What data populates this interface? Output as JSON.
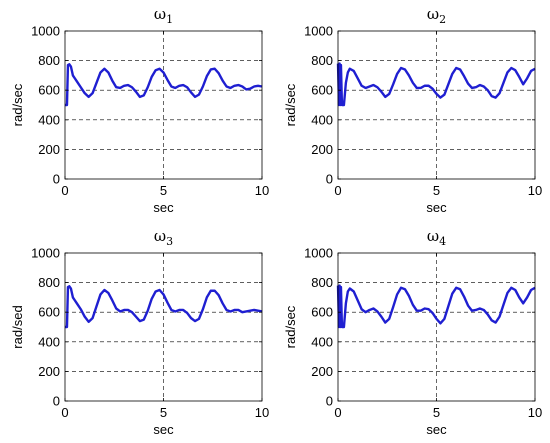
{
  "figure": {
    "background": "#ffffff",
    "line_color": "#1f1fd1",
    "grid_color": "#000000"
  },
  "chart_data": [
    {
      "type": "line",
      "title_symbol": "ω",
      "title_sub": "1",
      "xlabel": "sec",
      "ylabel": "rad/sec",
      "xlim": [
        0,
        10
      ],
      "ylim": [
        0,
        1000
      ],
      "xticks": [
        0,
        5,
        10
      ],
      "yticks": [
        0,
        200,
        400,
        600,
        800,
        1000
      ],
      "grid": true,
      "series": [
        {
          "x": [
            0,
            0.1,
            0.15,
            0.22,
            0.3,
            0.4,
            0.5,
            0.6,
            0.8,
            1.0,
            1.2,
            1.4,
            1.6,
            1.8,
            2.0,
            2.2,
            2.4,
            2.6,
            2.8,
            3.0,
            3.2,
            3.4,
            3.6,
            3.8,
            4.0,
            4.2,
            4.4,
            4.6,
            4.8,
            5.0,
            5.2,
            5.4,
            5.6,
            5.8,
            6.0,
            6.2,
            6.4,
            6.6,
            6.8,
            7.0,
            7.2,
            7.4,
            7.6,
            7.8,
            8.0,
            8.2,
            8.4,
            8.6,
            8.8,
            9.0,
            9.2,
            9.4,
            9.6,
            9.8,
            10.0
          ],
          "y": [
            500,
            500,
            770,
            775,
            760,
            700,
            680,
            660,
            620,
            580,
            555,
            580,
            650,
            720,
            745,
            720,
            665,
            620,
            615,
            630,
            635,
            620,
            590,
            555,
            565,
            620,
            690,
            735,
            745,
            720,
            670,
            625,
            615,
            630,
            635,
            620,
            585,
            555,
            570,
            625,
            695,
            740,
            745,
            715,
            665,
            625,
            615,
            630,
            635,
            625,
            605,
            610,
            625,
            630,
            625
          ]
        }
      ]
    },
    {
      "type": "line",
      "title_symbol": "ω",
      "title_sub": "2",
      "xlabel": "sec",
      "ylabel": "rad/sec",
      "xlim": [
        0,
        10
      ],
      "ylim": [
        0,
        1000
      ],
      "xticks": [
        0,
        5,
        10
      ],
      "yticks": [
        0,
        200,
        400,
        600,
        800,
        1000
      ],
      "grid": true,
      "series": [
        {
          "x": [
            0,
            0.05,
            0.08,
            0.12,
            0.15,
            0.2,
            0.3,
            0.4,
            0.5,
            0.6,
            0.8,
            1.0,
            1.2,
            1.4,
            1.6,
            1.8,
            2.0,
            2.2,
            2.4,
            2.6,
            2.8,
            3.0,
            3.2,
            3.4,
            3.6,
            3.8,
            4.0,
            4.2,
            4.4,
            4.6,
            4.8,
            5.0,
            5.2,
            5.4,
            5.6,
            5.8,
            6.0,
            6.2,
            6.4,
            6.6,
            6.8,
            7.0,
            7.2,
            7.4,
            7.6,
            7.8,
            8.0,
            8.2,
            8.4,
            8.6,
            8.8,
            9.0,
            9.2,
            9.4,
            9.6,
            9.8,
            10.0
          ],
          "y": [
            780,
            500,
            780,
            500,
            770,
            500,
            500,
            650,
            720,
            745,
            730,
            680,
            630,
            615,
            625,
            635,
            620,
            590,
            555,
            575,
            640,
            710,
            750,
            740,
            700,
            650,
            615,
            615,
            630,
            630,
            610,
            575,
            550,
            570,
            640,
            710,
            750,
            740,
            695,
            645,
            615,
            620,
            635,
            625,
            600,
            560,
            550,
            580,
            650,
            720,
            750,
            735,
            690,
            640,
            680,
            730,
            745
          ]
        }
      ]
    },
    {
      "type": "line",
      "title_symbol": "ω",
      "title_sub": "3",
      "xlabel": "sec",
      "ylabel": "rad/sed",
      "xlim": [
        0,
        10
      ],
      "ylim": [
        0,
        1000
      ],
      "xticks": [
        0,
        5,
        10
      ],
      "yticks": [
        0,
        200,
        400,
        600,
        800,
        1000
      ],
      "grid": true,
      "series": [
        {
          "x": [
            0,
            0.1,
            0.15,
            0.22,
            0.3,
            0.4,
            0.5,
            0.6,
            0.8,
            1.0,
            1.2,
            1.4,
            1.6,
            1.8,
            2.0,
            2.2,
            2.4,
            2.6,
            2.8,
            3.0,
            3.2,
            3.4,
            3.6,
            3.8,
            4.0,
            4.2,
            4.4,
            4.6,
            4.8,
            5.0,
            5.2,
            5.4,
            5.6,
            5.8,
            6.0,
            6.2,
            6.4,
            6.6,
            6.8,
            7.0,
            7.2,
            7.4,
            7.6,
            7.8,
            8.0,
            8.2,
            8.4,
            8.6,
            8.8,
            9.0,
            9.2,
            9.4,
            9.6,
            9.8,
            10.0
          ],
          "y": [
            500,
            500,
            770,
            775,
            760,
            700,
            680,
            660,
            620,
            570,
            535,
            560,
            640,
            720,
            750,
            730,
            680,
            625,
            605,
            615,
            615,
            600,
            570,
            540,
            550,
            610,
            690,
            740,
            750,
            720,
            665,
            615,
            605,
            615,
            615,
            595,
            560,
            540,
            555,
            620,
            700,
            745,
            745,
            715,
            660,
            615,
            605,
            615,
            615,
            600,
            605,
            610,
            615,
            610,
            605
          ]
        }
      ]
    },
    {
      "type": "line",
      "title_symbol": "ω",
      "title_sub": "4",
      "xlabel": "sec",
      "ylabel": "rad/sec",
      "xlim": [
        0,
        10
      ],
      "ylim": [
        0,
        1000
      ],
      "xticks": [
        0,
        5,
        10
      ],
      "yticks": [
        0,
        200,
        400,
        600,
        800,
        1000
      ],
      "grid": true,
      "series": [
        {
          "x": [
            0,
            0.05,
            0.08,
            0.12,
            0.15,
            0.2,
            0.3,
            0.4,
            0.5,
            0.6,
            0.8,
            1.0,
            1.2,
            1.4,
            1.6,
            1.8,
            2.0,
            2.2,
            2.4,
            2.6,
            2.8,
            3.0,
            3.2,
            3.4,
            3.6,
            3.8,
            4.0,
            4.2,
            4.4,
            4.6,
            4.8,
            5.0,
            5.2,
            5.4,
            5.6,
            5.8,
            6.0,
            6.2,
            6.4,
            6.6,
            6.8,
            7.0,
            7.2,
            7.4,
            7.6,
            7.8,
            8.0,
            8.2,
            8.4,
            8.6,
            8.8,
            9.0,
            9.2,
            9.4,
            9.6,
            9.8,
            10.0
          ],
          "y": [
            780,
            500,
            780,
            500,
            770,
            500,
            500,
            660,
            740,
            760,
            740,
            680,
            620,
            600,
            615,
            625,
            605,
            570,
            530,
            555,
            635,
            720,
            765,
            755,
            710,
            650,
            610,
            610,
            625,
            620,
            595,
            555,
            525,
            555,
            640,
            725,
            765,
            755,
            705,
            645,
            610,
            615,
            625,
            615,
            585,
            545,
            530,
            570,
            650,
            730,
            765,
            750,
            700,
            660,
            700,
            750,
            765
          ]
        }
      ]
    }
  ]
}
